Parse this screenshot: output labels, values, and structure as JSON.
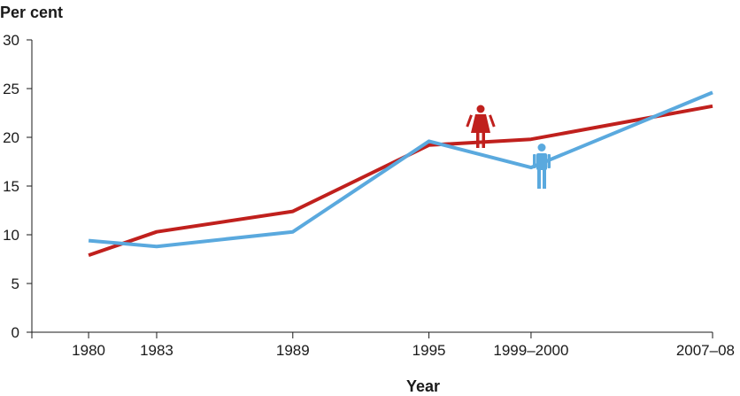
{
  "chart_data": {
    "type": "line",
    "ylabel": "Per cent",
    "xlabel": "Year",
    "categories": [
      "1980",
      "1983",
      "1989",
      "1995",
      "1999–2000",
      "2007–08"
    ],
    "x_positions_years": [
      1980,
      1983,
      1989,
      1995,
      1999.5,
      2007.5
    ],
    "yticks": [
      0,
      5,
      10,
      15,
      20,
      25,
      30
    ],
    "ylim": [
      0,
      30
    ],
    "xlim": [
      1977.5,
      2007.5
    ],
    "grid": false,
    "legend": "none",
    "series": [
      {
        "key": "female",
        "icon": "female-figure-icon",
        "color": "#c0201d",
        "values": [
          7.9,
          10.3,
          12.4,
          19.2,
          19.8,
          23.2
        ]
      },
      {
        "key": "male",
        "icon": "male-figure-icon",
        "color": "#5aa9de",
        "values": [
          9.4,
          8.8,
          10.3,
          19.6,
          16.9,
          24.6
        ]
      }
    ]
  }
}
